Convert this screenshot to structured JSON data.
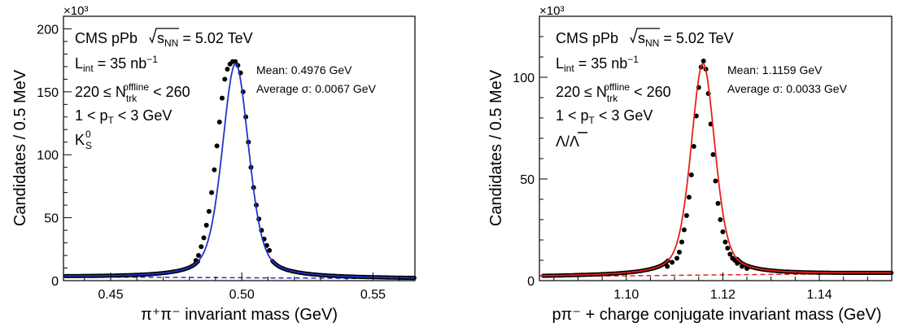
{
  "chart_data": [
    {
      "type": "scatter",
      "xlabel": "π⁺π⁻ invariant mass (GeV)",
      "ylabel": "Candidates / 0.5 MeV",
      "y_multiplier": "×10³",
      "xlim": [
        0.432,
        0.566
      ],
      "ylim": [
        0,
        210
      ],
      "x_ticks": [
        0.45,
        0.5,
        0.55
      ],
      "x_tick_labels": [
        "0.45",
        "0.50",
        "0.55"
      ],
      "y_ticks": [
        0,
        50,
        100,
        150,
        200
      ],
      "y_tick_labels": [
        "0",
        "50",
        "100",
        "150",
        "200"
      ],
      "grid": false,
      "labels": {
        "experiment": "CMS pPb",
        "energy": "√sNN = 5.02 TeV",
        "lumi": "Lint = 35 nb⁻¹",
        "multiplicity": "220 ≤ N_trk^offline < 260",
        "pt": "1 < pT < 3 GeV",
        "particle": "K⁰S",
        "mean": "Mean: 0.4976 GeV",
        "sigma": "Average σ: 0.0067 GeV"
      },
      "peak": {
        "mass": 0.4976,
        "sigma": 0.0067,
        "amplitude": 170
      },
      "background": {
        "at_xmin": 3.0,
        "at_xmax": 1.6
      },
      "series": [
        {
          "role": "data",
          "marker_color": "#000000",
          "points": [
            [
              0.4825,
              16
            ],
            [
              0.4835,
              20
            ],
            [
              0.4845,
              27
            ],
            [
              0.4855,
              34
            ],
            [
              0.4865,
              44
            ],
            [
              0.4875,
              55
            ],
            [
              0.4885,
              70
            ],
            [
              0.4895,
              88
            ],
            [
              0.4905,
              107
            ],
            [
              0.4915,
              126
            ],
            [
              0.4925,
              145
            ],
            [
              0.4935,
              160
            ],
            [
              0.4945,
              168
            ],
            [
              0.4955,
              172
            ],
            [
              0.4965,
              174
            ],
            [
              0.4975,
              174
            ],
            [
              0.4985,
              171
            ],
            [
              0.4995,
              165
            ],
            [
              0.5005,
              150
            ],
            [
              0.5015,
              130
            ],
            [
              0.5025,
              110
            ],
            [
              0.5035,
              90
            ],
            [
              0.5045,
              74
            ],
            [
              0.5055,
              60
            ],
            [
              0.5065,
              49
            ],
            [
              0.5075,
              40
            ],
            [
              0.5085,
              33
            ],
            [
              0.5095,
              28
            ],
            [
              0.5105,
              24
            ]
          ]
        },
        {
          "role": "fit",
          "color": "#1f36c8"
        },
        {
          "role": "background",
          "color": "#1f36c8",
          "dashed": true
        }
      ]
    },
    {
      "type": "scatter",
      "xlabel": "pπ⁻ + charge conjugate invariant mass (GeV)",
      "ylabel": "Candidates / 0.5 MeV",
      "y_multiplier": "×10³",
      "xlim": [
        1.082,
        1.155
      ],
      "ylim": [
        0,
        130
      ],
      "x_ticks": [
        1.1,
        1.12,
        1.14
      ],
      "x_tick_labels": [
        "1.10",
        "1.12",
        "1.14"
      ],
      "y_ticks": [
        0,
        50,
        100
      ],
      "y_tick_labels": [
        "0",
        "50",
        "100"
      ],
      "grid": false,
      "labels": {
        "experiment": "CMS pPb",
        "energy": "√sNN = 5.02 TeV",
        "lumi": "Lint = 35 nb⁻¹",
        "multiplicity": "220 ≤ N_trk^offline < 260",
        "pt": "1 < pT < 3 GeV",
        "particle": "Λ/Λ̄",
        "mean": "Mean: 1.1159 GeV",
        "sigma": "Average σ: 0.0033 GeV"
      },
      "peak": {
        "mass": 1.1159,
        "sigma": 0.0033,
        "amplitude": 104
      },
      "background": {
        "at_xmin": 2.0,
        "at_xmax": 3.6
      },
      "series": [
        {
          "role": "data",
          "marker_color": "#000000",
          "points": [
            [
              1.1085,
              7
            ],
            [
              1.1095,
              9
            ],
            [
              1.1105,
              11
            ],
            [
              1.111,
              14
            ],
            [
              1.1115,
              19
            ],
            [
              1.112,
              25
            ],
            [
              1.1125,
              32
            ],
            [
              1.113,
              41
            ],
            [
              1.1135,
              52
            ],
            [
              1.114,
              66
            ],
            [
              1.1145,
              81
            ],
            [
              1.115,
              95
            ],
            [
              1.1155,
              105
            ],
            [
              1.116,
              108
            ],
            [
              1.1165,
              104
            ],
            [
              1.117,
              92
            ],
            [
              1.1175,
              77
            ],
            [
              1.118,
              62
            ],
            [
              1.1185,
              49
            ],
            [
              1.119,
              38
            ],
            [
              1.1195,
              30
            ],
            [
              1.12,
              24
            ],
            [
              1.1205,
              19
            ],
            [
              1.121,
              16
            ],
            [
              1.1215,
              13
            ],
            [
              1.122,
              11
            ],
            [
              1.1225,
              10
            ],
            [
              1.123,
              8.5
            ],
            [
              1.124,
              7
            ],
            [
              1.125,
              6
            ]
          ]
        },
        {
          "role": "fit",
          "color": "#e8201a"
        },
        {
          "role": "background",
          "color": "#e8201a",
          "dashed": true
        }
      ]
    }
  ]
}
